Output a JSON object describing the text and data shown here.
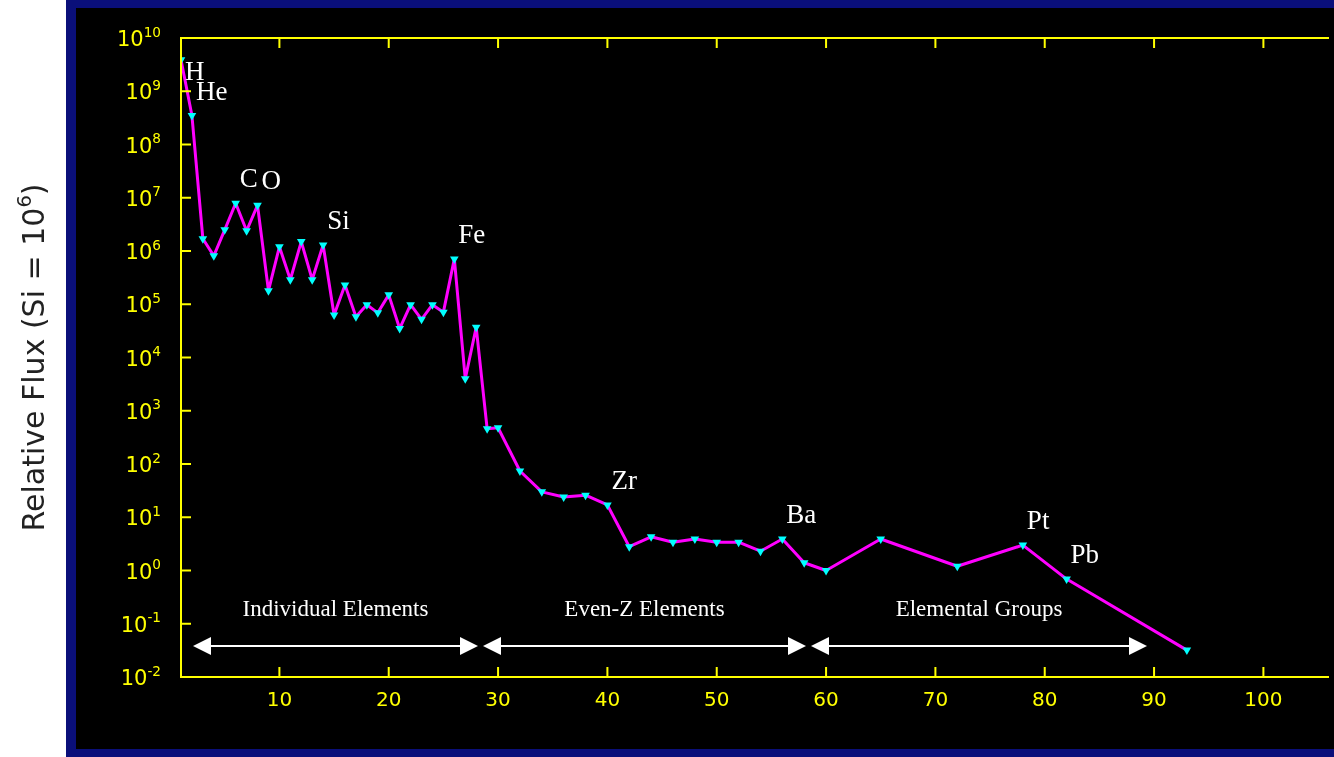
{
  "chart_data": {
    "type": "line",
    "ylabel": "Relative Flux (Si = 10$^{6}$)",
    "x": [
      1,
      2,
      3,
      4,
      5,
      6,
      7,
      8,
      9,
      10,
      11,
      12,
      13,
      14,
      15,
      16,
      17,
      18,
      19,
      20,
      21,
      22,
      23,
      24,
      25,
      26,
      27,
      28,
      29,
      30,
      32,
      34,
      36,
      38,
      40,
      42,
      44,
      46,
      48,
      50,
      52,
      54,
      56,
      58,
      60,
      65,
      72,
      78,
      82,
      93
    ],
    "series": [
      {
        "color": "#ff00ff",
        "colors": [
          "#00ffff",
          "#00ffff",
          "#00ffff",
          "#00ffff",
          "#00ffff",
          "#00ffff",
          "#00ffff",
          "#00ffff",
          "#00ffff",
          "#00ffff",
          "#00ffff",
          "#00ffff",
          "#00ffff",
          "#00ffff",
          "#00ffff",
          "#00ffff",
          "#00ffff",
          "#00ffff",
          "#00ffff",
          "#00ffff",
          "#00ffff",
          "#00ffff",
          "#00ffff",
          "#00ffff",
          "#00ffff",
          "#00ffff",
          "#00ffff",
          "#00ffff",
          "#00ffff",
          "#00ffff",
          "#00ffff",
          "#00ffff",
          "#00ffff",
          "#00ffff",
          "#00ffff",
          "#00ffff",
          "#00ffff",
          "#00ffff",
          "#00ffff",
          "#00ffff",
          "#00ffff",
          "#00ffff",
          "#00ffff",
          "#00ffff",
          "#00ffff",
          "#00ffff",
          "#00ffff",
          "#00ffff",
          "#00ffff",
          "#00ffff"
        ],
        "values": [
          3900000000.0,
          350000000.0,
          1700000.0,
          810000.0,
          2500000.0,
          7900000.0,
          2400000.0,
          7200000.0,
          180000.0,
          1200000.0,
          290000.0,
          1500000.0,
          290000.0,
          1300000.0,
          63000.0,
          230000.0,
          58000.0,
          98000.0,
          69000.0,
          150000.0,
          35000.0,
          98000.0,
          52000.0,
          98000.0,
          71000.0,
          710000.0,
          4000.0,
          37000.0,
          460,
          480,
          74,
          30,
          24,
          26,
          17,
          2.8,
          4.3,
          3.4,
          3.9,
          3.4,
          3.4,
          2.3,
          3.9,
          1.4,
          1.0,
          3.9,
          1.2,
          3.0,
          0.69,
          0.032
        ]
      }
    ],
    "marker": "triangle",
    "log": "y",
    "xlim": [
      1,
      106
    ],
    "ylim": [
      0.01,
      10000000000.0
    ],
    "xticks": [
      10,
      20,
      30,
      40,
      50,
      60,
      70,
      80,
      90,
      100
    ],
    "yticks": [
      {
        "value": 0.01,
        "label": "10$^{-2}$"
      },
      {
        "value": 0.1,
        "label": "10$^{-1}$"
      },
      {
        "value": 1,
        "label": "10$^{0}$"
      },
      {
        "value": 10,
        "label": "10$^{1}$"
      },
      {
        "value": 100,
        "label": "10$^{2}$"
      },
      {
        "value": 1000,
        "label": "10$^{3}$"
      },
      {
        "value": 10000,
        "label": "10$^{4}$"
      },
      {
        "value": 100000,
        "label": "10$^{5}$"
      },
      {
        "value": 1000000,
        "label": "10$^{6}$"
      },
      {
        "value": 10000000,
        "label": "10$^{7}$"
      },
      {
        "value": 100000000,
        "label": "10$^{8}$"
      },
      {
        "value": 1000000000,
        "label": "10$^{9}$"
      },
      {
        "value": 10000000000,
        "label": "10$^{10}$"
      }
    ],
    "grid": false,
    "legend": false,
    "annotations": [
      "Individual Elements",
      "Even-Z Elements",
      "Elemental Groups",
      {
        "text": "H",
        "x": 1,
        "y": 3900000000.0
      },
      {
        "text": "He",
        "x": 2,
        "y": 350000000.0
      },
      {
        "text": "C",
        "x": 6,
        "y": 7900000.0
      },
      {
        "text": "O",
        "x": 8,
        "y": 7200000.0
      },
      {
        "text": "Si",
        "x": 14,
        "y": 1300000.0
      },
      {
        "text": "Fe",
        "x": 26,
        "y": 710000.0
      },
      {
        "text": "Zr",
        "x": 40,
        "y": 17
      },
      {
        "text": "Ba",
        "x": 56,
        "y": 3.9
      },
      {
        "text": "Pt",
        "x": 78,
        "y": 3.0
      },
      {
        "text": "Pb",
        "x": 82,
        "y": 0.69
      }
    ]
  }
}
